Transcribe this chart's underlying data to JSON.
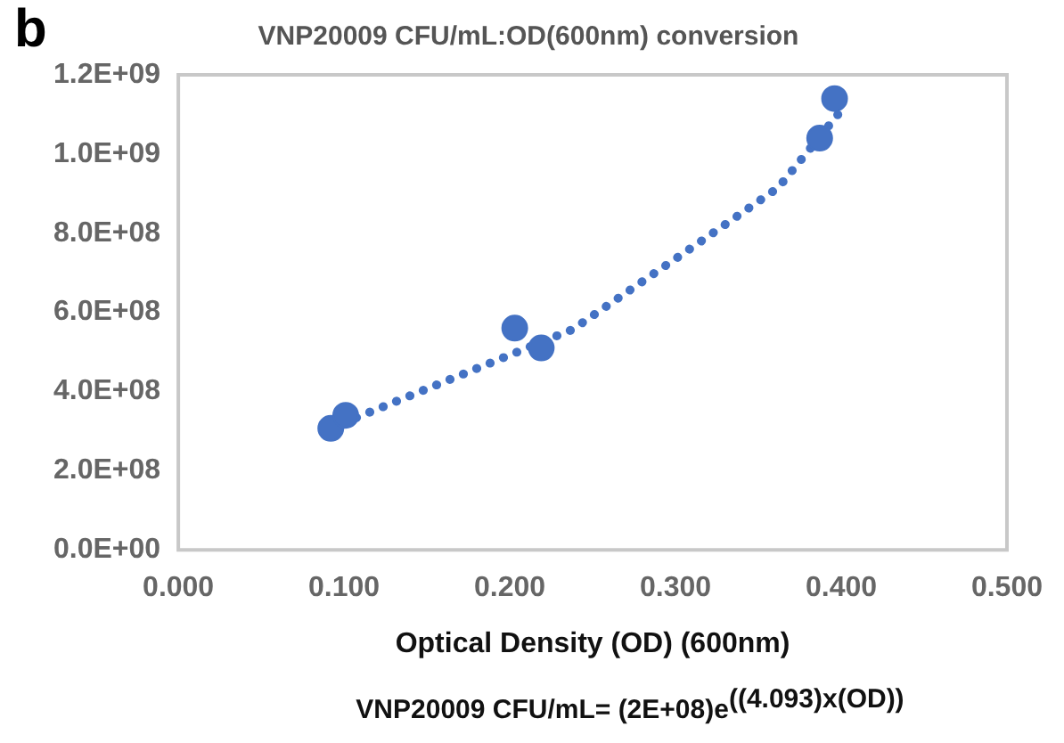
{
  "chart_data": {
    "type": "scatter",
    "title": "VNP20009 CFU/mL:OD(600nm) conversion",
    "xlabel": "Optical Density (OD) (600nm)",
    "annotations": [
      "b",
      "VNP20009 CFU/mL= (2E+08)e$^{((4.093)x(OD))}$"
    ],
    "series": [
      {
        "type": "scatter",
        "color": "#4472c4",
        "marker": "circle",
        "x": [
          0.092,
          0.101,
          0.203,
          0.219,
          0.387,
          0.396
        ],
        "values": [
          307000000,
          340000000,
          560000000,
          510000000,
          1040000000,
          1140000000
        ]
      },
      {
        "type": "line",
        "color": "#4472c4",
        "line_style": "dotted",
        "marker": "none",
        "x": [
          0.092,
          0.108,
          0.238,
          0.319,
          0.362,
          0.4
        ],
        "values": [
          300000000,
          335000000,
          557000000,
          790000000,
          915000000,
          1110000000
        ]
      }
    ],
    "xlim": [
      0,
      0.5
    ],
    "xticks": [
      {
        "value": 0,
        "label": "0.000"
      },
      {
        "value": 0.1,
        "label": "0.100"
      },
      {
        "value": 0.2,
        "label": "0.200"
      },
      {
        "value": 0.3,
        "label": "0.300"
      },
      {
        "value": 0.4,
        "label": "0.400"
      },
      {
        "value": 0.5,
        "label": "0.500"
      }
    ],
    "ylim": [
      0,
      1200000000
    ],
    "yticks": [
      {
        "value": 0,
        "label": "0.0E+00"
      },
      {
        "value": 200000000,
        "label": "2.0E+08"
      },
      {
        "value": 400000000,
        "label": "4.0E+08"
      },
      {
        "value": 600000000,
        "label": "6.0E+08"
      },
      {
        "value": 800000000,
        "label": "8.0E+08"
      },
      {
        "value": 1000000000,
        "label": "1.0E+09"
      },
      {
        "value": 1200000000,
        "label": "1.2E+09"
      }
    ],
    "grid": false,
    "legend": false
  }
}
